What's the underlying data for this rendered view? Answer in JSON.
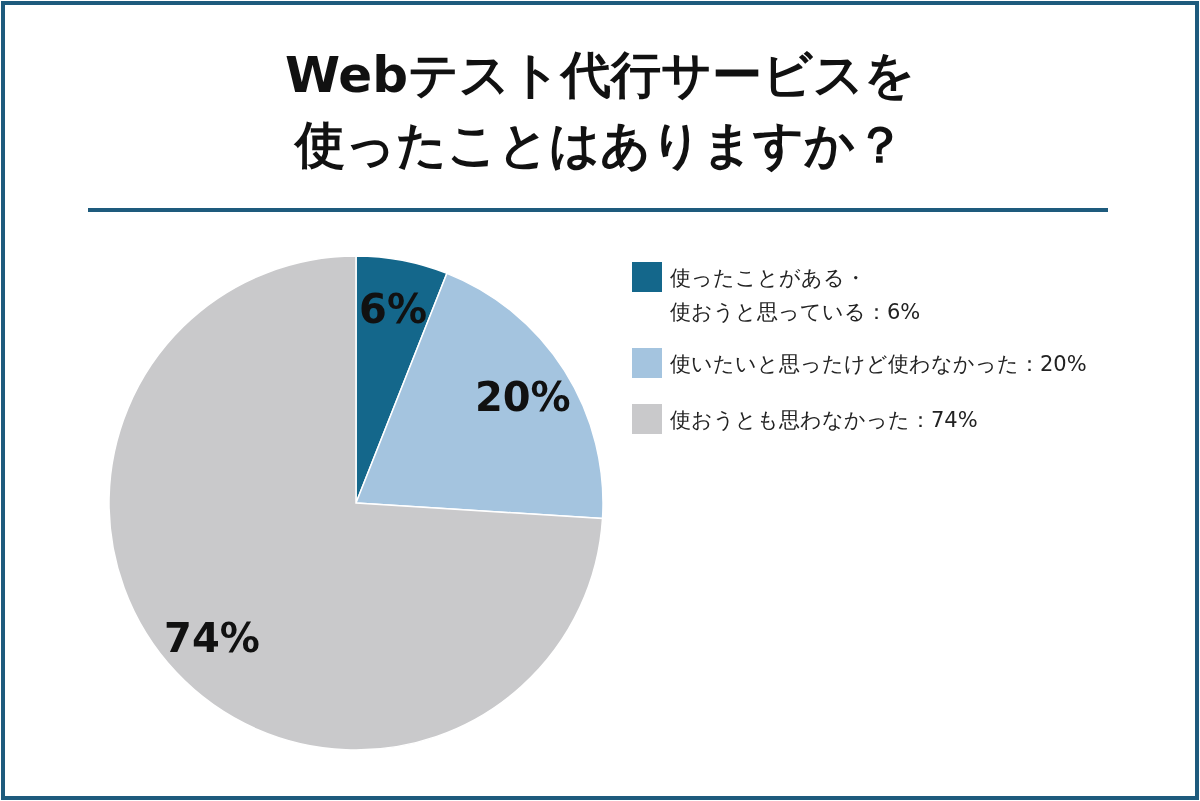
{
  "chart_data": {
    "type": "pie",
    "title": "Webテスト代行サービスを使ったことはありますか？",
    "categories": [
      "使ったことがある・使おうと思っている：6%",
      "使いたいと思ったけど使わなかった：20%",
      "使おうとも思わなかった：74%"
    ],
    "values": [
      6,
      20,
      74
    ],
    "colors": [
      "#14678b",
      "#a4c4df",
      "#c9c9cb"
    ],
    "value_labels": [
      "6%",
      "20%",
      "74%"
    ],
    "legend": "right"
  }
}
